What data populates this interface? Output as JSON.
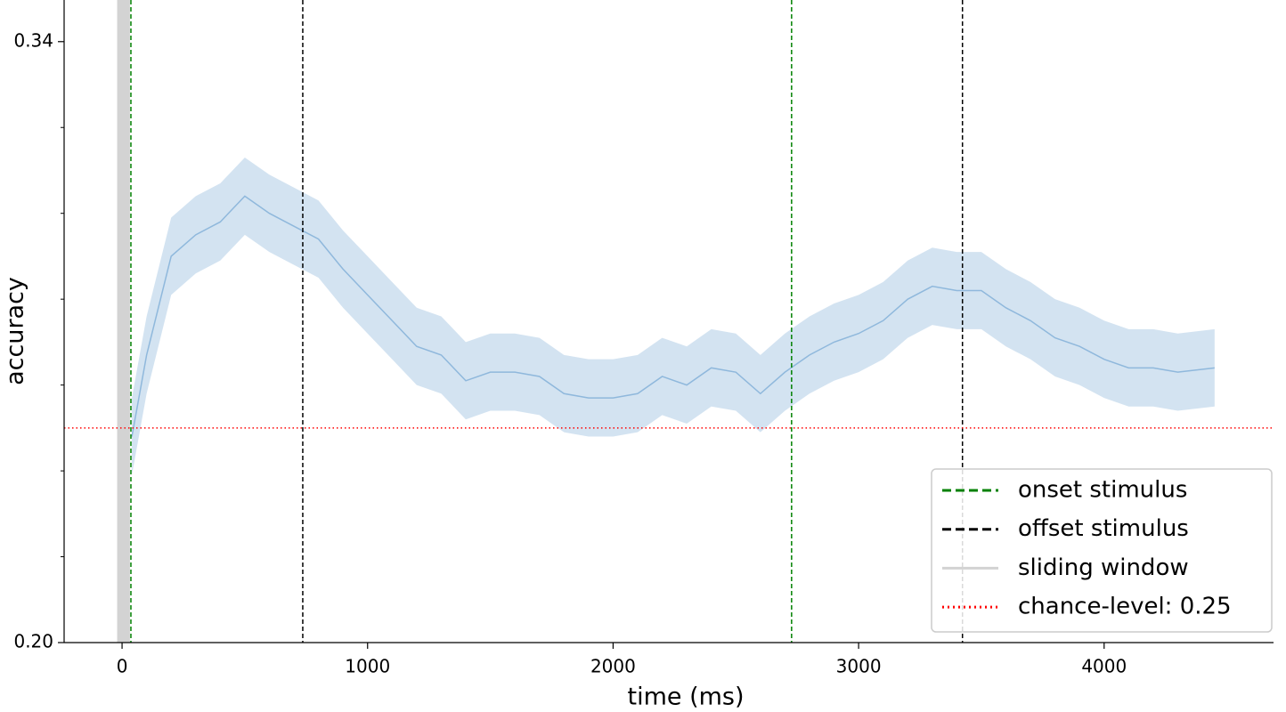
{
  "chart_data": {
    "type": "line",
    "xlabel": "time (ms)",
    "ylabel": "accuracy",
    "x": [
      40,
      100,
      200,
      300,
      400,
      500,
      600,
      700,
      800,
      900,
      1000,
      1100,
      1200,
      1300,
      1400,
      1500,
      1600,
      1700,
      1800,
      1900,
      2000,
      2100,
      2200,
      2300,
      2400,
      2500,
      2600,
      2700,
      2800,
      2900,
      3000,
      3100,
      3200,
      3300,
      3400,
      3500,
      3600,
      3700,
      3800,
      3900,
      4000,
      4100,
      4200,
      4300,
      4450
    ],
    "values": [
      0.248,
      0.267,
      0.29,
      0.295,
      0.298,
      0.304,
      0.3,
      0.297,
      0.294,
      0.287,
      0.281,
      0.275,
      0.269,
      0.267,
      0.261,
      0.263,
      0.263,
      0.262,
      0.258,
      0.257,
      0.257,
      0.258,
      0.262,
      0.26,
      0.264,
      0.263,
      0.258,
      0.263,
      0.267,
      0.27,
      0.272,
      0.275,
      0.28,
      0.283,
      0.282,
      0.282,
      0.278,
      0.275,
      0.271,
      0.269,
      0.266,
      0.264,
      0.264,
      0.263,
      0.264
    ],
    "lower": [
      0.239,
      0.258,
      0.281,
      0.286,
      0.289,
      0.295,
      0.291,
      0.288,
      0.285,
      0.278,
      0.272,
      0.266,
      0.26,
      0.258,
      0.252,
      0.254,
      0.254,
      0.253,
      0.249,
      0.248,
      0.248,
      0.249,
      0.253,
      0.251,
      0.255,
      0.254,
      0.249,
      0.254,
      0.258,
      0.261,
      0.263,
      0.266,
      0.271,
      0.274,
      0.273,
      0.273,
      0.269,
      0.266,
      0.262,
      0.26,
      0.257,
      0.255,
      0.255,
      0.254,
      0.255
    ],
    "upper": [
      0.257,
      0.276,
      0.299,
      0.304,
      0.307,
      0.313,
      0.309,
      0.306,
      0.303,
      0.296,
      0.29,
      0.284,
      0.278,
      0.276,
      0.27,
      0.272,
      0.272,
      0.271,
      0.267,
      0.266,
      0.266,
      0.267,
      0.271,
      0.269,
      0.273,
      0.272,
      0.267,
      0.272,
      0.276,
      0.279,
      0.281,
      0.284,
      0.289,
      0.292,
      0.291,
      0.291,
      0.287,
      0.284,
      0.28,
      0.278,
      0.275,
      0.273,
      0.273,
      0.272,
      0.273
    ],
    "color": "#8fb8dc",
    "band_color": "#b5d0e8",
    "xlim": [
      -236,
      4690
    ],
    "xticks": [
      0,
      1000,
      2000,
      3000,
      4000
    ],
    "ylim": [
      0.2,
      0.3497
    ],
    "yticks": [
      {
        "value": 0.2,
        "label": "0.20"
      },
      0.34
    ],
    "yminorticks": [
      0.22,
      0.24,
      0.26,
      0.28,
      0.3,
      0.32
    ],
    "vlines": [
      {
        "name": "onset stimulus",
        "color": "green",
        "x": [
          36,
          2727
        ]
      },
      {
        "name": "offset stimulus",
        "color": "black",
        "x": [
          736,
          3423
        ]
      }
    ],
    "sliding_window": {
      "name": "sliding window",
      "color": "#d3d3d3",
      "x": [
        -20,
        32
      ]
    },
    "chance_level": {
      "name": "chance-level: 0.25",
      "value": 0.25,
      "color": "red"
    },
    "legend": "lower right"
  }
}
